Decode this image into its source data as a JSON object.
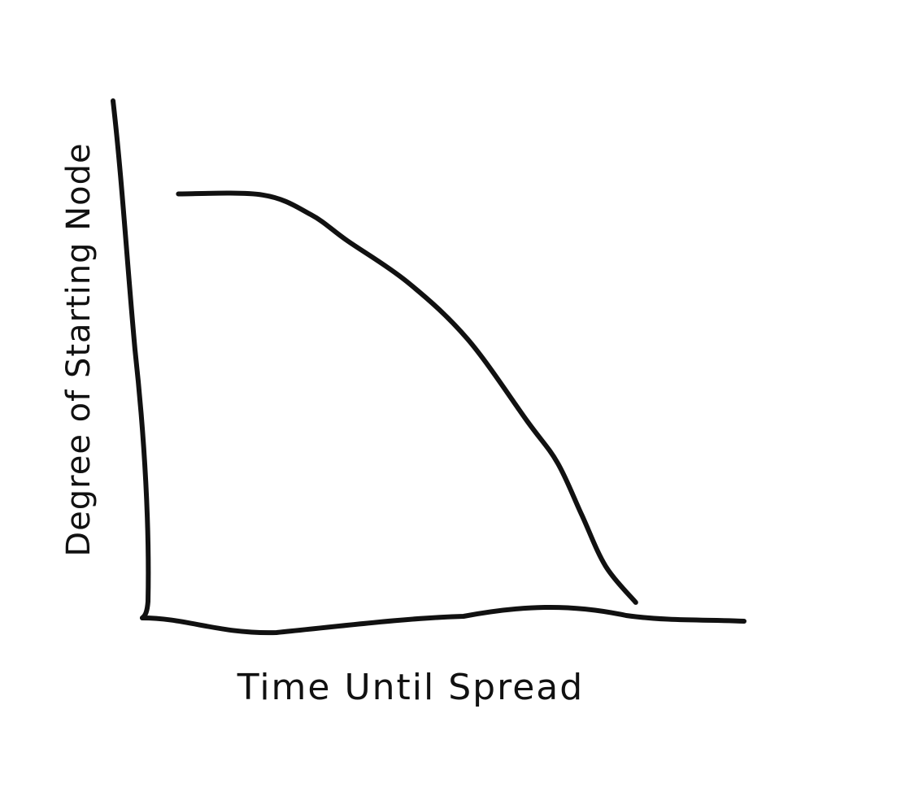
{
  "chart_data": {
    "type": "line",
    "title": "",
    "xlabel": "Time Until Spread",
    "ylabel": "Degree of Starting Node",
    "grid": false,
    "legend": "none",
    "xlim": [
      0,
      100
    ],
    "ylim": [
      0,
      100
    ],
    "series": [
      {
        "color": "#111111",
        "x": [
          6,
          20,
          28,
          34,
          44,
          54,
          64,
          69,
          73,
          77,
          82
        ],
        "y": [
          82,
          81.8,
          78,
          73,
          65,
          54,
          38,
          30,
          20,
          10,
          3
        ]
      }
    ]
  }
}
